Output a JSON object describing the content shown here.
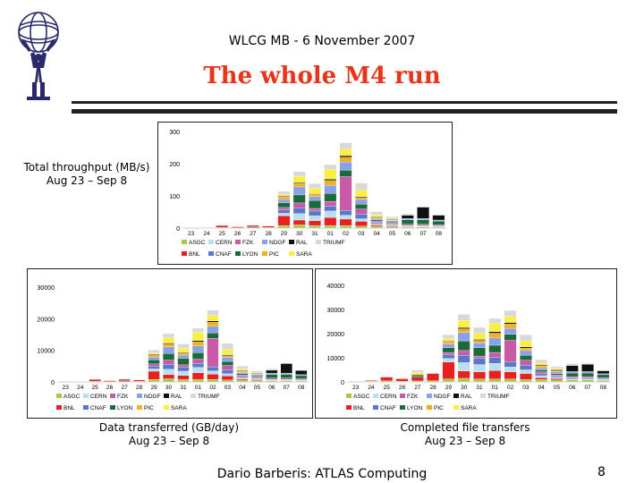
{
  "header": {
    "meeting": "WLCG MB - 6 November 2007"
  },
  "slide": {
    "title": "The whole M4 run"
  },
  "footer": {
    "author": "Dario Barberis: ATLAS Computing",
    "page": "8"
  },
  "legend": [
    {
      "name": "ASGC",
      "color": "#a8c84a"
    },
    {
      "name": "CERN",
      "color": "#b8e0f0"
    },
    {
      "name": "FZK",
      "color": "#c85aa8"
    },
    {
      "name": "NDGF",
      "color": "#8aa0e8"
    },
    {
      "name": "RAL",
      "color": "#101010"
    },
    {
      "name": "TRIUMF",
      "color": "#d8d8d8"
    },
    {
      "name": "BNL",
      "color": "#e82020"
    },
    {
      "name": "CNAF",
      "color": "#5a78c8"
    },
    {
      "name": "LYON",
      "color": "#1a6a3a"
    },
    {
      "name": "PIC",
      "color": "#f0b020"
    },
    {
      "name": "SARA",
      "color": "#f8f040"
    }
  ],
  "chart_data": [
    {
      "type": "bar",
      "stacked": true,
      "caption": [
        "Total throughput (MB/s)",
        "Aug 23 – Sep 8"
      ],
      "categories": [
        "23",
        "24",
        "25",
        "26",
        "27",
        "28",
        "29",
        "30",
        "31",
        "01",
        "02",
        "03",
        "04",
        "05",
        "06",
        "07",
        "08"
      ],
      "ylim": [
        0,
        300
      ],
      "yticks": [
        0,
        100,
        200,
        300
      ],
      "grid": false,
      "legend_position": "bottom",
      "series": [
        {
          "name": "ASGC",
          "values": [
            0,
            1,
            2,
            1,
            1,
            2,
            8,
            10,
            8,
            8,
            8,
            6,
            6,
            4,
            4,
            4,
            3
          ]
        },
        {
          "name": "BNL",
          "values": [
            0,
            1,
            6,
            3,
            4,
            4,
            30,
            15,
            15,
            25,
            20,
            15,
            4,
            3,
            0,
            0,
            0
          ]
        },
        {
          "name": "CERN",
          "values": [
            0,
            0,
            0,
            0,
            0,
            0,
            8,
            20,
            15,
            20,
            12,
            8,
            4,
            3,
            2,
            2,
            2
          ]
        },
        {
          "name": "CNAF",
          "values": [
            0,
            0,
            0,
            0,
            0,
            0,
            10,
            18,
            15,
            15,
            15,
            15,
            4,
            3,
            2,
            2,
            2
          ]
        },
        {
          "name": "FZK",
          "values": [
            0,
            0,
            0,
            0,
            0,
            0,
            8,
            15,
            8,
            15,
            105,
            15,
            4,
            3,
            4,
            4,
            3
          ]
        },
        {
          "name": "LYON",
          "values": [
            0,
            0,
            0,
            0,
            2,
            0,
            15,
            25,
            25,
            25,
            20,
            15,
            4,
            3,
            14,
            14,
            12
          ]
        },
        {
          "name": "NDGF",
          "values": [
            0,
            0,
            0,
            0,
            0,
            0,
            10,
            25,
            12,
            25,
            25,
            15,
            4,
            4,
            4,
            4,
            3
          ]
        },
        {
          "name": "PIC",
          "values": [
            0,
            0,
            0,
            0,
            0,
            0,
            8,
            10,
            8,
            15,
            15,
            6,
            4,
            2,
            0,
            0,
            0
          ]
        },
        {
          "name": "RAL",
          "values": [
            0,
            0,
            0,
            0,
            2,
            0,
            2,
            3,
            2,
            4,
            5,
            3,
            2,
            2,
            10,
            35,
            15
          ]
        },
        {
          "name": "SARA",
          "values": [
            0,
            0,
            0,
            0,
            0,
            0,
            5,
            20,
            15,
            30,
            20,
            20,
            5,
            3,
            0,
            0,
            0
          ]
        },
        {
          "name": "TRIUMF",
          "values": [
            0,
            0,
            0,
            0,
            2,
            0,
            10,
            15,
            15,
            15,
            20,
            22,
            10,
            5,
            5,
            0,
            0
          ]
        }
      ]
    },
    {
      "type": "bar",
      "stacked": true,
      "caption": [
        "Data transferred (GB/day)",
        "Aug 23 – Sep 8"
      ],
      "categories": [
        "23",
        "24",
        "25",
        "26",
        "27",
        "28",
        "29",
        "30",
        "31",
        "01",
        "02",
        "03",
        "04",
        "05",
        "06",
        "07",
        "08"
      ],
      "ylim": [
        0,
        30000
      ],
      "yticks": [
        0,
        10000,
        20000,
        30000
      ],
      "grid": false,
      "legend_position": "bottom",
      "series": [
        {
          "name": "ASGC",
          "values": [
            0,
            100,
            200,
            100,
            100,
            200,
            800,
            1000,
            800,
            800,
            800,
            600,
            600,
            400,
            400,
            400,
            300
          ]
        },
        {
          "name": "BNL",
          "values": [
            0,
            100,
            600,
            300,
            400,
            400,
            2600,
            1300,
            1300,
            2100,
            1700,
            1300,
            400,
            300,
            0,
            0,
            0
          ]
        },
        {
          "name": "CERN",
          "values": [
            0,
            0,
            0,
            0,
            0,
            0,
            700,
            1700,
            1300,
            1700,
            1000,
            700,
            400,
            300,
            200,
            200,
            200
          ]
        },
        {
          "name": "CNAF",
          "values": [
            0,
            0,
            0,
            0,
            0,
            0,
            900,
            1600,
            1300,
            1300,
            1300,
            1300,
            400,
            300,
            200,
            200,
            200
          ]
        },
        {
          "name": "FZK",
          "values": [
            0,
            0,
            0,
            0,
            0,
            0,
            700,
            1300,
            700,
            1300,
            9000,
            1300,
            400,
            300,
            400,
            400,
            300
          ]
        },
        {
          "name": "LYON",
          "values": [
            0,
            0,
            0,
            0,
            200,
            0,
            1300,
            2100,
            2100,
            2100,
            1700,
            1300,
            400,
            300,
            1200,
            1200,
            1000
          ]
        },
        {
          "name": "NDGF",
          "values": [
            0,
            0,
            0,
            0,
            0,
            0,
            900,
            2100,
            1000,
            2100,
            2100,
            1300,
            400,
            400,
            400,
            400,
            300
          ]
        },
        {
          "name": "PIC",
          "values": [
            0,
            0,
            0,
            0,
            0,
            0,
            700,
            900,
            700,
            1300,
            1300,
            500,
            400,
            200,
            0,
            0,
            0
          ]
        },
        {
          "name": "RAL",
          "values": [
            0,
            0,
            0,
            0,
            200,
            0,
            200,
            300,
            200,
            400,
            400,
            300,
            200,
            200,
            900,
            3000,
            1300
          ]
        },
        {
          "name": "SARA",
          "values": [
            0,
            0,
            0,
            0,
            0,
            0,
            400,
            1700,
            1300,
            2600,
            1700,
            1700,
            500,
            300,
            0,
            0,
            0
          ]
        },
        {
          "name": "TRIUMF",
          "values": [
            0,
            0,
            0,
            0,
            200,
            0,
            900,
            1300,
            1300,
            1300,
            1700,
            1900,
            900,
            500,
            500,
            0,
            0
          ]
        }
      ]
    },
    {
      "type": "bar",
      "stacked": true,
      "caption": [
        "Completed file transfers",
        "Aug 23 – Sep 8"
      ],
      "categories": [
        "23",
        "24",
        "25",
        "26",
        "27",
        "28",
        "29",
        "30",
        "31",
        "01",
        "02",
        "03",
        "04",
        "05",
        "06",
        "07",
        "08"
      ],
      "ylim": [
        0,
        40000
      ],
      "yticks": [
        0,
        10000,
        20000,
        30000,
        40000
      ],
      "grid": false,
      "legend_position": "bottom",
      "series": [
        {
          "name": "ASGC",
          "values": [
            0,
            300,
            500,
            300,
            400,
            500,
            1200,
            1500,
            1200,
            1200,
            1200,
            1000,
            1000,
            800,
            800,
            800,
            600
          ]
        },
        {
          "name": "BNL",
          "values": [
            0,
            300,
            1500,
            1000,
            1500,
            3000,
            7000,
            3000,
            3000,
            3500,
            3000,
            2500,
            800,
            600,
            0,
            0,
            0
          ]
        },
        {
          "name": "CERN",
          "values": [
            0,
            0,
            0,
            0,
            0,
            0,
            1500,
            3500,
            3000,
            3000,
            2000,
            1500,
            800,
            500,
            400,
            400,
            400
          ]
        },
        {
          "name": "CNAF",
          "values": [
            0,
            0,
            0,
            0,
            0,
            0,
            1500,
            3000,
            2500,
            2500,
            2000,
            2000,
            800,
            500,
            400,
            400,
            400
          ]
        },
        {
          "name": "FZK",
          "values": [
            0,
            0,
            0,
            0,
            0,
            0,
            1000,
            2000,
            1000,
            2000,
            9000,
            2000,
            800,
            500,
            600,
            600,
            400
          ]
        },
        {
          "name": "LYON",
          "values": [
            0,
            0,
            0,
            0,
            500,
            0,
            2000,
            4000,
            3500,
            3000,
            2500,
            2000,
            800,
            500,
            1500,
            1500,
            1200
          ]
        },
        {
          "name": "NDGF",
          "values": [
            0,
            0,
            0,
            0,
            0,
            0,
            1500,
            3500,
            2000,
            3000,
            2500,
            2000,
            800,
            800,
            600,
            600,
            400
          ]
        },
        {
          "name": "PIC",
          "values": [
            0,
            0,
            0,
            0,
            0,
            0,
            1000,
            1500,
            1000,
            2000,
            1800,
            1000,
            800,
            400,
            0,
            0,
            0
          ]
        },
        {
          "name": "RAL",
          "values": [
            0,
            0,
            0,
            0,
            500,
            0,
            300,
            500,
            400,
            600,
            600,
            500,
            400,
            400,
            2500,
            3000,
            1200
          ]
        },
        {
          "name": "SARA",
          "values": [
            0,
            0,
            0,
            0,
            1000,
            0,
            1000,
            3000,
            2500,
            3500,
            2500,
            2500,
            1000,
            600,
            0,
            0,
            0
          ]
        },
        {
          "name": "TRIUMF",
          "values": [
            0,
            0,
            0,
            0,
            1000,
            0,
            1500,
            2500,
            2500,
            2000,
            2500,
            2500,
            1200,
            800,
            800,
            400,
            0
          ]
        }
      ]
    }
  ]
}
